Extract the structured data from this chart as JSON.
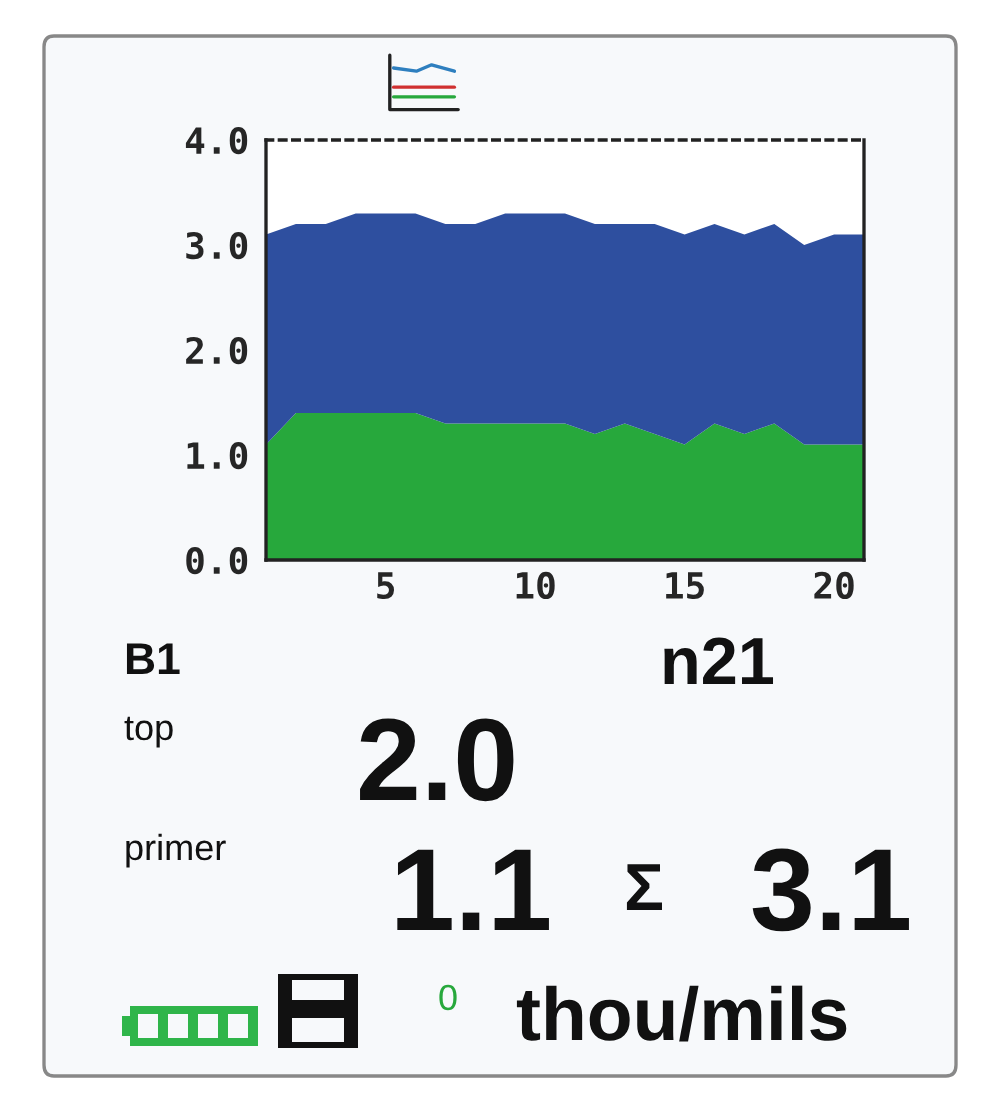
{
  "chart_data": {
    "type": "area",
    "stacked": true,
    "x": [
      1,
      2,
      3,
      4,
      5,
      6,
      7,
      8,
      9,
      10,
      11,
      12,
      13,
      14,
      15,
      16,
      17,
      18,
      19,
      20,
      21
    ],
    "series": [
      {
        "color": "#27a83c",
        "values": [
          1.1,
          1.4,
          1.4,
          1.4,
          1.4,
          1.4,
          1.3,
          1.3,
          1.3,
          1.3,
          1.3,
          1.2,
          1.3,
          1.2,
          1.1,
          1.3,
          1.2,
          1.3,
          1.1,
          1.1,
          1.1
        ]
      },
      {
        "color": "#2e4f9f",
        "values": [
          2.0,
          1.8,
          1.8,
          1.9,
          1.9,
          1.9,
          1.9,
          1.9,
          2.0,
          2.0,
          2.0,
          2.0,
          1.9,
          2.0,
          2.0,
          1.9,
          1.9,
          1.9,
          1.9,
          2.0,
          2.0
        ]
      }
    ],
    "xlim": [
      1,
      21
    ],
    "xticks": [
      5,
      10,
      15,
      20
    ],
    "ylim": [
      0,
      4
    ],
    "yticks": [
      {
        "value": 0,
        "label": "0.0"
      },
      {
        "value": 1,
        "label": "1.0"
      },
      {
        "value": 2,
        "label": "2.0"
      },
      {
        "value": 3,
        "label": "3.0"
      },
      {
        "value": 4,
        "label": "4.0"
      }
    ],
    "grid": false,
    "annotations": [
      "B1",
      "n21",
      "top",
      "2.0",
      "primer",
      "1.1",
      "Σ",
      "3.1",
      "0",
      "thou/mils"
    ]
  }
}
